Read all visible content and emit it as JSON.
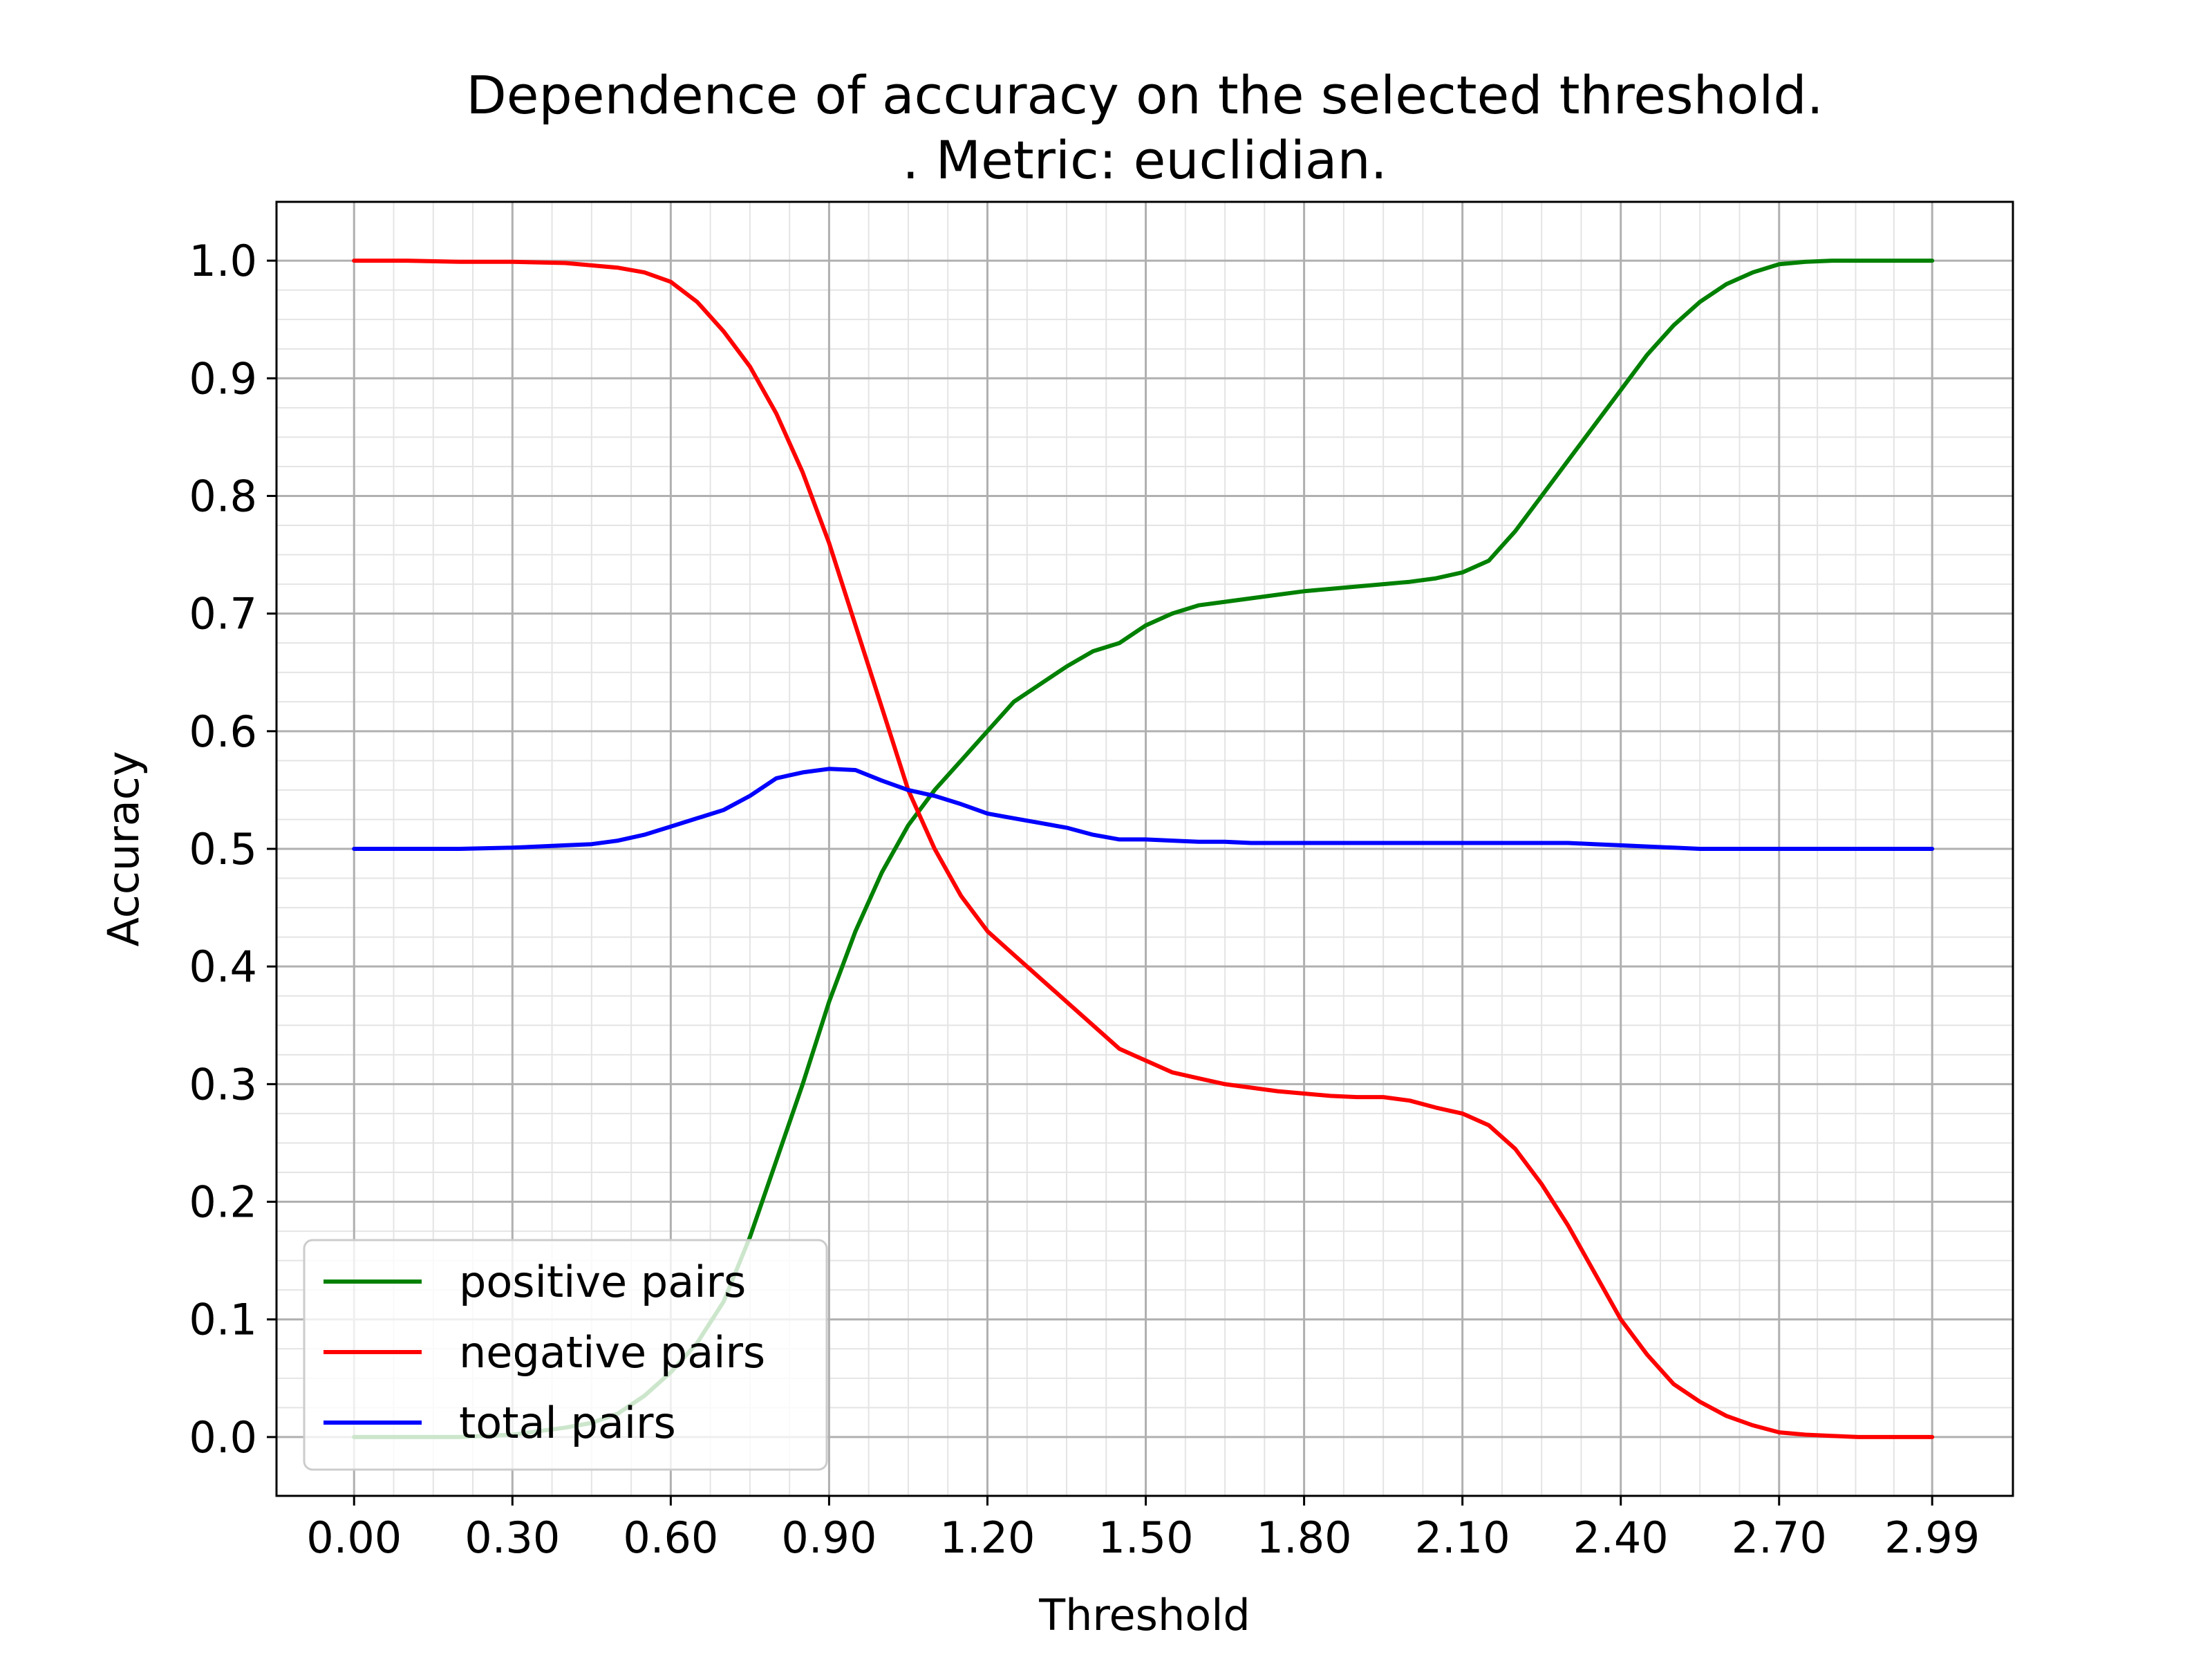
{
  "chart_data": {
    "type": "line",
    "title_line1": "Dependence of accuracy on the selected threshold.",
    "title_line2": ". Metric: euclidian.",
    "xlabel": "Threshold",
    "ylabel": "Accuracy",
    "xlim": [
      -0.147,
      3.143
    ],
    "ylim": [
      -0.05,
      1.05
    ],
    "xticks": [
      0.0,
      0.3,
      0.6,
      0.9,
      1.2,
      1.5,
      1.8,
      2.1,
      2.4,
      2.7,
      2.99
    ],
    "xtick_labels": [
      "0.00",
      "0.30",
      "0.60",
      "0.90",
      "1.20",
      "1.50",
      "1.80",
      "2.10",
      "2.40",
      "2.70",
      "2.99"
    ],
    "yticks": [
      0.0,
      0.1,
      0.2,
      0.3,
      0.4,
      0.5,
      0.6,
      0.7,
      0.8,
      0.9,
      1.0
    ],
    "ytick_labels": [
      "0.0",
      "0.1",
      "0.2",
      "0.3",
      "0.4",
      "0.5",
      "0.6",
      "0.7",
      "0.8",
      "0.9",
      "1.0"
    ],
    "grid": true,
    "minor_grid": true,
    "legend_position": "lower-left",
    "series": [
      {
        "name": "positive pairs",
        "color": "#008000",
        "x": [
          0.0,
          0.1,
          0.2,
          0.3,
          0.4,
          0.45,
          0.5,
          0.55,
          0.6,
          0.65,
          0.7,
          0.75,
          0.8,
          0.85,
          0.9,
          0.95,
          1.0,
          1.05,
          1.1,
          1.15,
          1.2,
          1.25,
          1.3,
          1.35,
          1.4,
          1.45,
          1.5,
          1.55,
          1.6,
          1.65,
          1.7,
          1.75,
          1.8,
          1.85,
          1.9,
          1.95,
          2.0,
          2.05,
          2.1,
          2.15,
          2.2,
          2.25,
          2.3,
          2.35,
          2.4,
          2.45,
          2.5,
          2.55,
          2.6,
          2.65,
          2.7,
          2.75,
          2.8,
          2.85,
          2.9,
          2.99
        ],
        "y": [
          0.0,
          0.0,
          0.0,
          0.002,
          0.008,
          0.012,
          0.02,
          0.035,
          0.055,
          0.08,
          0.115,
          0.17,
          0.235,
          0.3,
          0.37,
          0.43,
          0.48,
          0.52,
          0.55,
          0.575,
          0.6,
          0.625,
          0.64,
          0.655,
          0.668,
          0.675,
          0.69,
          0.7,
          0.707,
          0.71,
          0.713,
          0.716,
          0.719,
          0.721,
          0.723,
          0.725,
          0.727,
          0.73,
          0.735,
          0.745,
          0.77,
          0.8,
          0.83,
          0.86,
          0.89,
          0.92,
          0.945,
          0.965,
          0.98,
          0.99,
          0.997,
          0.999,
          1.0,
          1.0,
          1.0,
          1.0
        ]
      },
      {
        "name": "negative pairs",
        "color": "#ff0000",
        "x": [
          0.0,
          0.1,
          0.2,
          0.3,
          0.4,
          0.45,
          0.5,
          0.55,
          0.6,
          0.65,
          0.7,
          0.75,
          0.8,
          0.85,
          0.9,
          0.95,
          1.0,
          1.05,
          1.1,
          1.15,
          1.2,
          1.25,
          1.3,
          1.35,
          1.4,
          1.45,
          1.5,
          1.55,
          1.6,
          1.65,
          1.7,
          1.75,
          1.8,
          1.85,
          1.9,
          1.95,
          2.0,
          2.05,
          2.1,
          2.15,
          2.2,
          2.25,
          2.3,
          2.35,
          2.4,
          2.45,
          2.5,
          2.55,
          2.6,
          2.65,
          2.7,
          2.75,
          2.8,
          2.85,
          2.9,
          2.99
        ],
        "y": [
          1.0,
          1.0,
          0.999,
          0.999,
          0.998,
          0.996,
          0.994,
          0.99,
          0.982,
          0.965,
          0.94,
          0.91,
          0.87,
          0.82,
          0.76,
          0.69,
          0.62,
          0.55,
          0.5,
          0.46,
          0.43,
          0.41,
          0.39,
          0.37,
          0.35,
          0.33,
          0.32,
          0.31,
          0.305,
          0.3,
          0.297,
          0.294,
          0.292,
          0.29,
          0.289,
          0.289,
          0.286,
          0.28,
          0.275,
          0.265,
          0.245,
          0.215,
          0.18,
          0.14,
          0.1,
          0.07,
          0.045,
          0.03,
          0.018,
          0.01,
          0.004,
          0.002,
          0.001,
          0.0,
          0.0,
          0.0
        ]
      },
      {
        "name": "total pairs",
        "color": "#0000ff",
        "x": [
          0.0,
          0.1,
          0.2,
          0.3,
          0.4,
          0.45,
          0.5,
          0.55,
          0.6,
          0.65,
          0.7,
          0.75,
          0.8,
          0.85,
          0.9,
          0.95,
          1.0,
          1.05,
          1.1,
          1.15,
          1.2,
          1.25,
          1.3,
          1.35,
          1.4,
          1.45,
          1.5,
          1.55,
          1.6,
          1.65,
          1.7,
          1.75,
          1.8,
          1.85,
          1.9,
          1.95,
          2.0,
          2.05,
          2.1,
          2.15,
          2.2,
          2.25,
          2.3,
          2.35,
          2.4,
          2.45,
          2.5,
          2.55,
          2.6,
          2.65,
          2.7,
          2.75,
          2.8,
          2.85,
          2.9,
          2.99
        ],
        "y": [
          0.5,
          0.5,
          0.5,
          0.501,
          0.503,
          0.504,
          0.507,
          0.512,
          0.519,
          0.526,
          0.533,
          0.545,
          0.56,
          0.565,
          0.568,
          0.567,
          0.558,
          0.55,
          0.545,
          0.538,
          0.53,
          0.526,
          0.522,
          0.518,
          0.512,
          0.508,
          0.508,
          0.507,
          0.506,
          0.506,
          0.505,
          0.505,
          0.505,
          0.505,
          0.505,
          0.505,
          0.505,
          0.505,
          0.505,
          0.505,
          0.505,
          0.505,
          0.505,
          0.504,
          0.503,
          0.502,
          0.501,
          0.5,
          0.5,
          0.5,
          0.5,
          0.5,
          0.5,
          0.5,
          0.5,
          0.5
        ]
      }
    ]
  }
}
